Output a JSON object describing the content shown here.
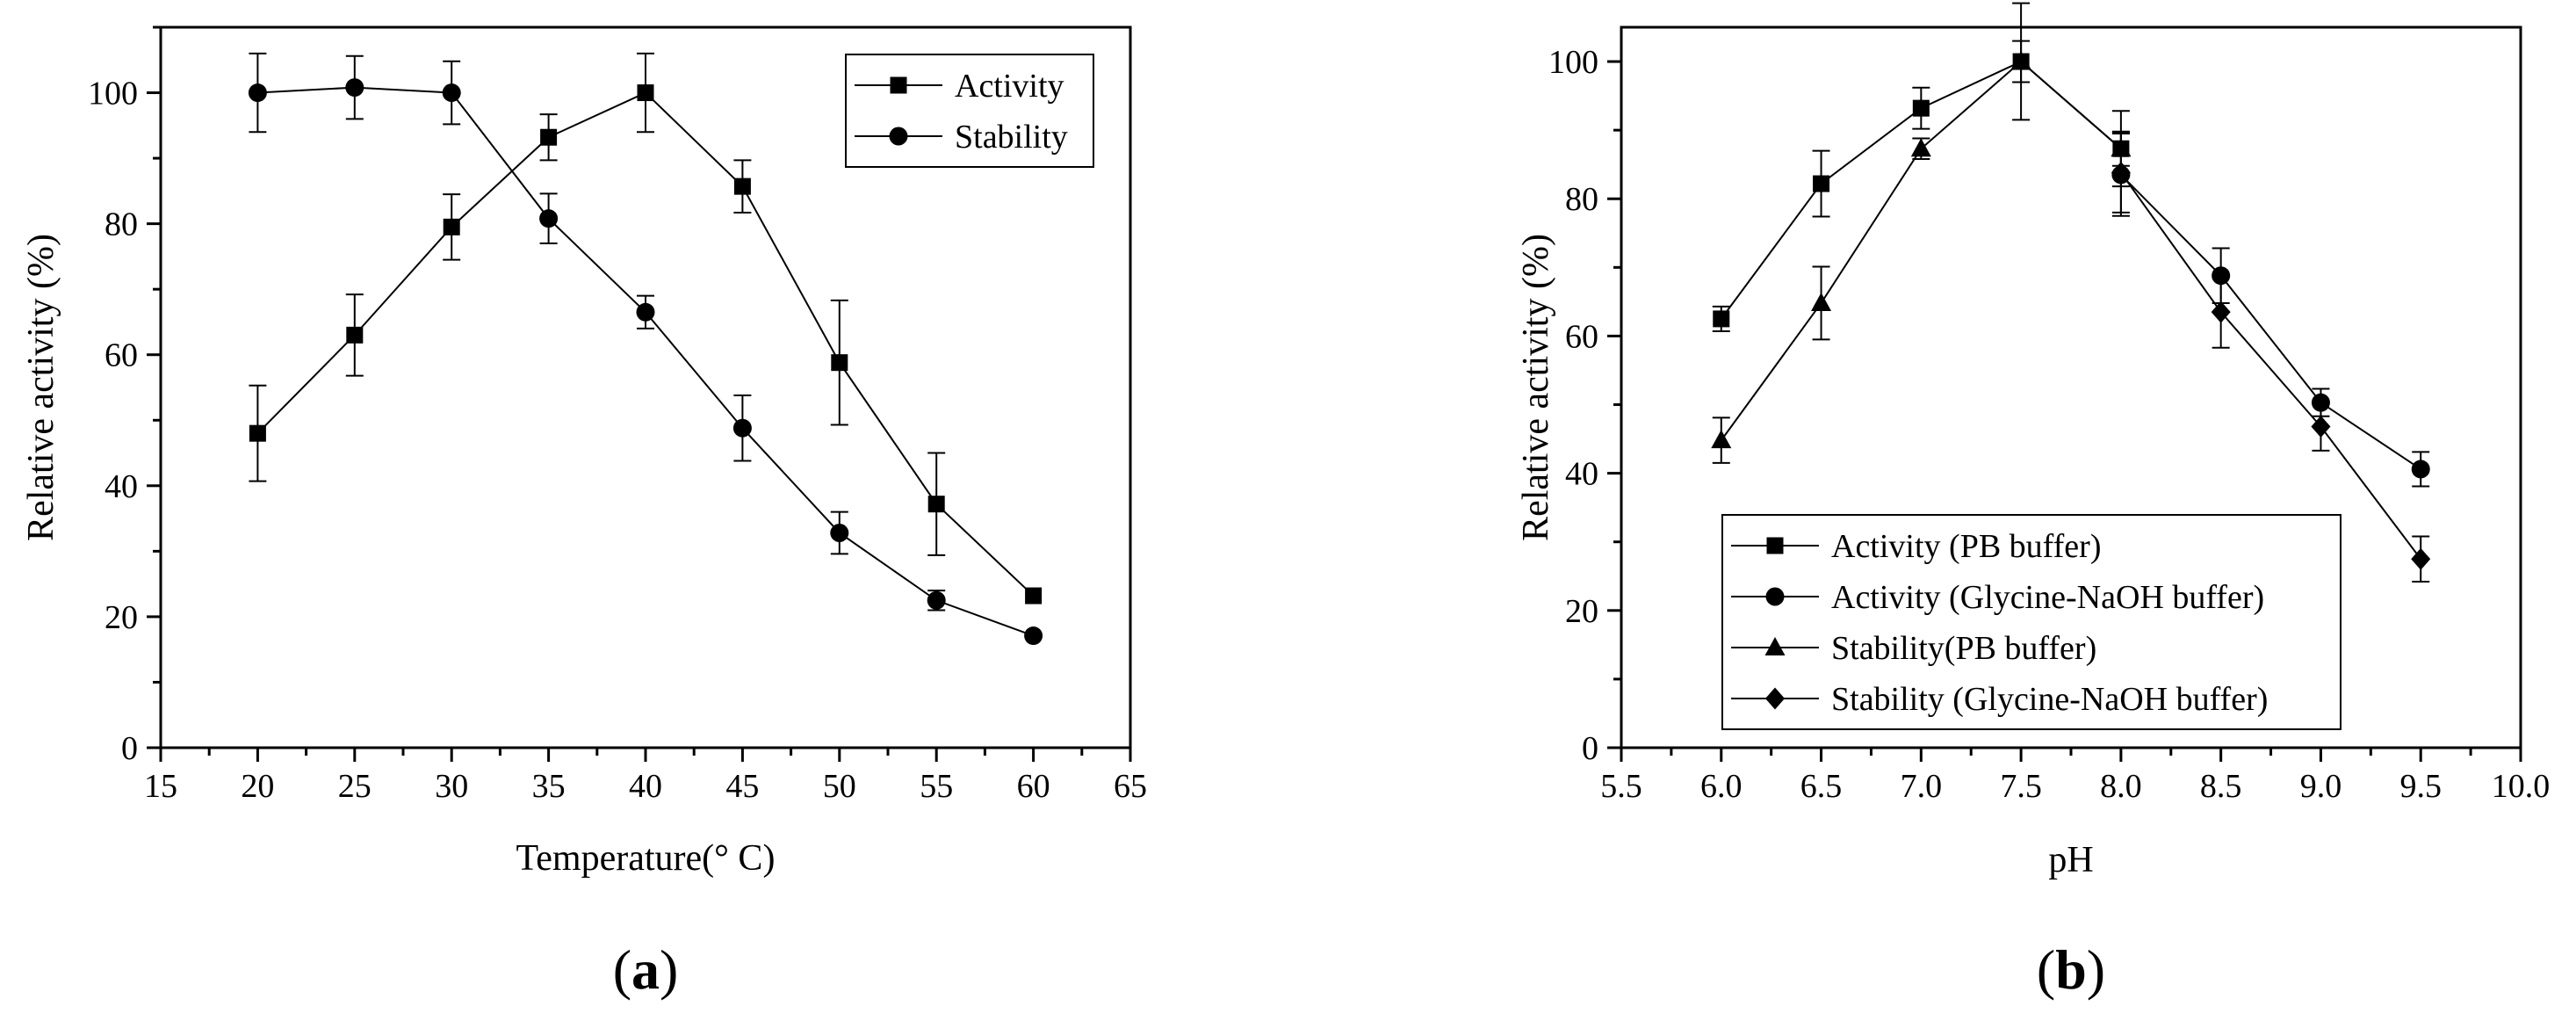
{
  "chart_data": [
    {
      "type": "line",
      "panel_label": "a",
      "xlabel": "Temperature(° C)",
      "ylabel": "Relative activity (%)",
      "xlim": [
        15,
        65
      ],
      "ylim": [
        0,
        110
      ],
      "xticks": [
        15,
        20,
        25,
        30,
        35,
        40,
        45,
        50,
        55,
        60,
        65
      ],
      "yticks": [
        0,
        20,
        40,
        60,
        80,
        100
      ],
      "legend_position": "top-right",
      "series": [
        {
          "name": "Activity",
          "marker": "square",
          "x": [
            20,
            25,
            30,
            35,
            40,
            45,
            50,
            55,
            60
          ],
          "y": [
            48,
            63,
            79.5,
            93.2,
            100,
            85.7,
            58.8,
            37.2,
            23.2
          ],
          "err": [
            7.3,
            6.2,
            5,
            3.5,
            6,
            4,
            9.5,
            7.8,
            0
          ]
        },
        {
          "name": "Stability",
          "marker": "circle",
          "x": [
            20,
            25,
            30,
            35,
            40,
            45,
            50,
            55,
            60
          ],
          "y": [
            100,
            100.8,
            100,
            80.8,
            66.5,
            48.8,
            32.8,
            22.5,
            17.1
          ],
          "err": [
            6,
            4.8,
            4.8,
            3.8,
            2.5,
            5,
            3.2,
            1.5,
            0
          ]
        }
      ]
    },
    {
      "type": "line",
      "panel_label": "b",
      "xlabel": "pH",
      "ylabel": "Relative activity (%)",
      "xlim": [
        5.5,
        10.0
      ],
      "ylim": [
        0,
        105
      ],
      "xticks": [
        "5.5",
        "6.0",
        "6.5",
        "7.0",
        "7.5",
        "8.0",
        "8.5",
        "9.0",
        "9.5",
        "10.0"
      ],
      "yticks": [
        0,
        20,
        40,
        60,
        80,
        100
      ],
      "legend_position": "bottom-left",
      "series": [
        {
          "name": "Activity (PB buffer)",
          "marker": "square",
          "x": [
            6.0,
            6.5,
            7.0,
            7.5,
            8.0
          ],
          "y": [
            62.5,
            82.2,
            93.2,
            100,
            87.3
          ],
          "err": [
            1.8,
            4.8,
            3,
            3,
            5.5
          ]
        },
        {
          "name": "Activity (Glycine-NaOH buffer)",
          "marker": "circle",
          "x": [
            8.0,
            8.5,
            9.0,
            9.5
          ],
          "y": [
            83.5,
            68.8,
            50.3,
            40.6
          ],
          "err": [
            6,
            4,
            2,
            2.5
          ]
        },
        {
          "name": "Stability(PB buffer)",
          "marker": "triangle",
          "x": [
            6.0,
            6.5,
            7.0,
            7.5,
            8.0
          ],
          "y": [
            44.8,
            64.8,
            87.3,
            100,
            87.3
          ],
          "err": [
            3.3,
            5.3,
            1.5,
            8.5,
            2.5
          ]
        },
        {
          "name": "Stability (Glycine-NaOH buffer)",
          "marker": "diamond",
          "x": [
            8.0,
            8.5,
            9.0,
            9.5
          ],
          "y": [
            83.8,
            63.5,
            46.8,
            27.5
          ],
          "err": [
            5.8,
            5.2,
            3.5,
            3.3
          ]
        }
      ]
    }
  ]
}
